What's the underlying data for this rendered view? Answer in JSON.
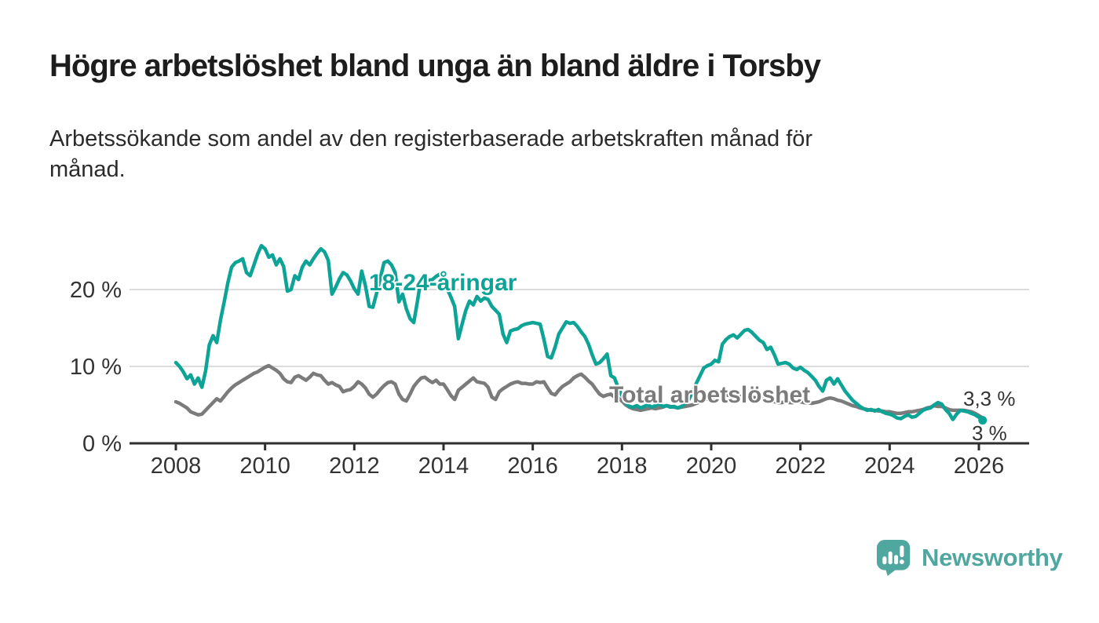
{
  "title": "Högre arbetslöshet bland unga än bland äldre i Torsby",
  "subtitle": {
    "line1": "Arbetssökande som andel av den registerbaserade arbetskraften månad för",
    "line2": "månad."
  },
  "chart_data": {
    "type": "line",
    "x_unit": "month",
    "x_range": [
      "2008-01",
      "2026-02"
    ],
    "y_unit": "%",
    "ylim": [
      0,
      27
    ],
    "grid": true,
    "x_axis": {
      "ticks": [
        {
          "year": 2008,
          "label": "2008"
        },
        {
          "year": 2010,
          "label": "2010"
        },
        {
          "year": 2012,
          "label": "2012"
        },
        {
          "year": 2014,
          "label": "2014"
        },
        {
          "year": 2016,
          "label": "2016"
        },
        {
          "year": 2018,
          "label": "2018"
        },
        {
          "year": 2020,
          "label": "2020"
        },
        {
          "year": 2022,
          "label": "2022"
        },
        {
          "year": 2024,
          "label": "2024"
        },
        {
          "year": 2026,
          "label": "2026"
        }
      ]
    },
    "y_axis": {
      "ticks": [
        {
          "value": 0,
          "label": "0 %"
        },
        {
          "value": 10,
          "label": "10 %"
        },
        {
          "value": 20,
          "label": "20 %"
        }
      ]
    },
    "series": [
      {
        "id": "youth",
        "name": "18-24-åringar",
        "color": "#0da396",
        "values": [
          10.5,
          10.0,
          9.3,
          8.4,
          8.9,
          7.7,
          8.5,
          7.3,
          9.4,
          12.8,
          14.0,
          13.1,
          16.0,
          18.4,
          20.9,
          22.9,
          23.5,
          23.7,
          24.0,
          22.2,
          21.8,
          23.2,
          24.6,
          25.7,
          25.3,
          24.2,
          24.5,
          23.2,
          24.0,
          23.0,
          19.8,
          20.0,
          21.8,
          21.3,
          22.9,
          23.7,
          23.2,
          24.0,
          24.7,
          25.3,
          24.9,
          23.8,
          19.4,
          20.3,
          21.4,
          22.2,
          21.9,
          21.1,
          20.1,
          19.4,
          22.4,
          20.5,
          17.8,
          17.7,
          19.5,
          21.5,
          23.5,
          23.7,
          23.2,
          22.2,
          18.4,
          19.4,
          17.5,
          16.2,
          15.7,
          18.5,
          21.6,
          21.1,
          21.2,
          21.3,
          21.7,
          22.0,
          22.2,
          20.1,
          19.0,
          17.8,
          13.6,
          15.5,
          17.3,
          18.5,
          18.0,
          19.1,
          18.5,
          18.9,
          18.7,
          17.8,
          17.3,
          16.8,
          14.2,
          13.1,
          14.6,
          14.8,
          14.9,
          15.3,
          15.5,
          15.6,
          15.7,
          15.6,
          15.5,
          13.5,
          11.3,
          11.1,
          12.5,
          14.2,
          15.0,
          15.8,
          15.6,
          15.7,
          15.2,
          14.5,
          13.9,
          12.9,
          11.5,
          10.3,
          10.5,
          11.0,
          11.6,
          8.8,
          8.5,
          7.2,
          6.2,
          5.3,
          4.8,
          4.7,
          4.9,
          4.6,
          4.8,
          5.0,
          4.7,
          4.9,
          5.1,
          4.8,
          4.9,
          4.7,
          4.8,
          4.6,
          4.8,
          5.2,
          5.7,
          6.7,
          7.8,
          8.8,
          9.8,
          10.1,
          10.3,
          10.8,
          10.6,
          12.9,
          13.5,
          13.9,
          14.1,
          13.7,
          14.2,
          14.7,
          14.8,
          14.4,
          13.9,
          13.4,
          13.1,
          12.2,
          12.5,
          11.5,
          10.3,
          10.4,
          10.5,
          10.3,
          9.8,
          9.6,
          9.9,
          9.5,
          9.2,
          8.7,
          8.2,
          7.4,
          6.8,
          8.2,
          8.5,
          7.7,
          8.4,
          7.6,
          6.8,
          6.2,
          5.6,
          5.2,
          4.8,
          4.5,
          4.3,
          4.4,
          4.2,
          4.4,
          4.1,
          3.9,
          3.8,
          3.6,
          3.3,
          3.2,
          3.5,
          3.7,
          3.4,
          3.5,
          3.9,
          4.3,
          4.5,
          4.6,
          5.0,
          5.3,
          5.1,
          4.4,
          3.9,
          3.1,
          3.8,
          4.3,
          4.2,
          4.1,
          3.9,
          3.7,
          3.4,
          3.0
        ]
      },
      {
        "id": "total",
        "name": "Total arbetslöshet",
        "color": "#7b7b7b",
        "values": [
          5.4,
          5.2,
          4.9,
          4.6,
          4.1,
          3.9,
          3.7,
          3.8,
          4.3,
          4.8,
          5.3,
          5.8,
          5.5,
          6.1,
          6.7,
          7.2,
          7.6,
          7.9,
          8.2,
          8.5,
          8.8,
          9.1,
          9.3,
          9.6,
          9.9,
          10.1,
          9.8,
          9.5,
          9.1,
          8.4,
          8.0,
          7.9,
          8.6,
          8.8,
          8.5,
          8.2,
          8.6,
          9.1,
          8.9,
          8.8,
          8.2,
          7.7,
          7.9,
          7.6,
          7.4,
          6.7,
          6.9,
          7.0,
          7.4,
          8.0,
          7.7,
          7.2,
          6.4,
          6.0,
          6.4,
          7.0,
          7.5,
          7.9,
          8.0,
          7.7,
          6.4,
          5.7,
          5.5,
          6.4,
          7.4,
          8.0,
          8.5,
          8.6,
          8.2,
          7.9,
          8.2,
          7.7,
          7.7,
          7.0,
          6.2,
          5.7,
          6.9,
          7.3,
          7.7,
          8.1,
          8.5,
          8.0,
          7.9,
          7.8,
          7.3,
          6.0,
          5.7,
          6.7,
          7.1,
          7.4,
          7.7,
          7.9,
          8.0,
          7.8,
          7.8,
          7.7,
          7.7,
          8.0,
          7.9,
          8.0,
          7.2,
          6.5,
          6.3,
          6.9,
          7.4,
          7.7,
          8.0,
          8.5,
          8.8,
          9.0,
          8.6,
          8.1,
          7.7,
          7.0,
          6.4,
          6.1,
          6.3,
          6.4,
          6.0,
          5.9,
          5.5,
          5.0,
          4.7,
          4.5,
          4.4,
          4.3,
          4.4,
          4.5,
          4.6,
          4.5,
          4.6,
          4.7,
          4.9,
          4.8,
          4.7,
          4.6,
          4.7,
          4.8,
          4.9,
          5.0,
          5.2,
          5.4,
          5.6,
          5.8,
          5.9,
          6.0,
          6.2,
          6.4,
          6.3,
          6.2,
          6.1,
          6.0,
          6.1,
          6.2,
          6.1,
          6.0,
          5.9,
          5.8,
          5.7,
          5.6,
          5.5,
          5.4,
          5.3,
          5.3,
          5.4,
          5.3,
          5.3,
          5.4,
          5.4,
          5.3,
          5.3,
          5.2,
          5.3,
          5.4,
          5.6,
          5.8,
          5.9,
          5.8,
          5.6,
          5.5,
          5.3,
          5.1,
          4.9,
          4.8,
          4.6,
          4.5,
          4.4,
          4.3,
          4.3,
          4.2,
          4.2,
          4.1,
          4.1,
          4.0,
          3.9,
          3.9,
          4.0,
          4.1,
          4.1,
          4.2,
          4.3,
          4.4,
          4.6,
          4.7,
          4.9,
          4.8,
          4.8,
          4.6,
          4.4,
          4.3,
          4.3,
          4.3,
          4.3,
          4.2,
          4.1,
          3.9,
          3.6,
          3.3
        ]
      }
    ],
    "end_labels": {
      "total_latest": "3,3 %",
      "youth_latest": "3 %"
    },
    "style": {
      "grid_color": "#dcdcdc",
      "axis_color": "#2f2f2f",
      "axis_text_color": "#333333"
    }
  },
  "branding": {
    "logo_text": "Newsworthy",
    "color": "#4fa7a0"
  }
}
